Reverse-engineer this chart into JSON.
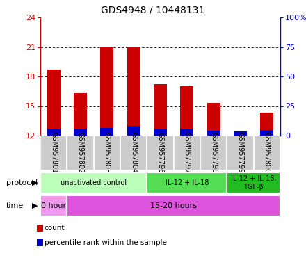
{
  "title": "GDS4948 / 10448131",
  "samples": [
    "GSM957801",
    "GSM957802",
    "GSM957803",
    "GSM957804",
    "GSM957796",
    "GSM957797",
    "GSM957798",
    "GSM957799",
    "GSM957800"
  ],
  "count_values": [
    18.7,
    16.3,
    21.0,
    21.0,
    17.2,
    17.0,
    15.3,
    12.2,
    14.3
  ],
  "percentile_values": [
    0.7,
    0.7,
    0.8,
    1.0,
    0.7,
    0.7,
    0.5,
    0.4,
    0.6
  ],
  "ymin": 12,
  "ymax": 24,
  "yticks": [
    12,
    15,
    18,
    21,
    24
  ],
  "y2ticks": [
    0,
    25,
    50,
    75,
    100
  ],
  "bar_color": "#cc0000",
  "percentile_color": "#0000cc",
  "bar_width": 0.5,
  "protocol_groups": [
    {
      "label": "unactivated control",
      "start": 0,
      "end": 4,
      "color": "#bbffbb"
    },
    {
      "label": "IL-12 + IL-18",
      "start": 4,
      "end": 7,
      "color": "#55dd55"
    },
    {
      "label": "IL-12 + IL-18,\nTGF-β",
      "start": 7,
      "end": 9,
      "color": "#22bb22"
    }
  ],
  "time_groups": [
    {
      "label": "0 hour",
      "start": 0,
      "end": 1,
      "color": "#ee99ee"
    },
    {
      "label": "15-20 hours",
      "start": 1,
      "end": 9,
      "color": "#dd55dd"
    }
  ],
  "legend_items": [
    {
      "label": "count",
      "color": "#cc0000"
    },
    {
      "label": "percentile rank within the sample",
      "color": "#0000cc"
    }
  ],
  "protocol_label": "protocol",
  "time_label": "time",
  "bg_color": "#ffffff",
  "sample_bg_color": "#cccccc",
  "grid_yticks": [
    15,
    18,
    21
  ]
}
